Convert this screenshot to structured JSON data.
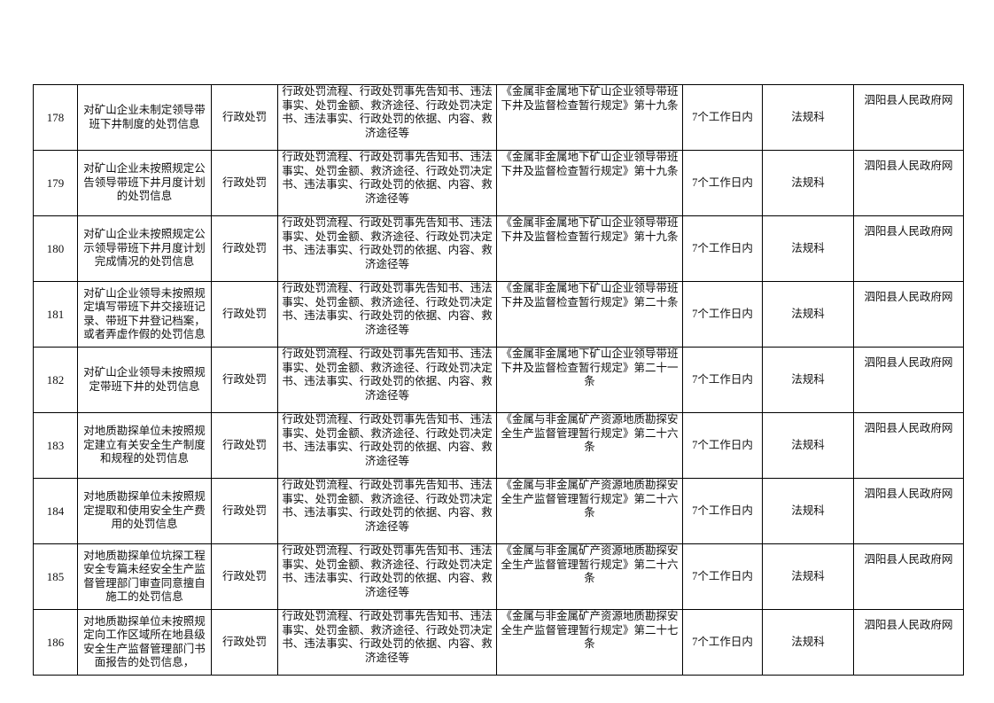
{
  "rows": [
    {
      "no": "178",
      "item": "对矿山企业未制定领导带班下井制度的处罚信息",
      "type": "行政处罚",
      "content": "行政处罚流程、行政处罚事先告知书、违法事实、处罚金额、救济途径、行政处罚决定书、违法事实、行政处罚的依据、内容、救济途径等",
      "basis": "《金属非金属地下矿山企业领导带班下井及监督检查暂行规定》第十九条",
      "time": "7个工作日内",
      "dept": "法规科",
      "channel": "泗阳县人民政府网"
    },
    {
      "no": "179",
      "item": "对矿山企业未按照规定公告领导带班下井月度计划的处罚信息",
      "type": "行政处罚",
      "content": "行政处罚流程、行政处罚事先告知书、违法事实、处罚金额、救济途径、行政处罚决定书、违法事实、行政处罚的依据、内容、救济途径等",
      "basis": "《金属非金属地下矿山企业领导带班下井及监督检查暂行规定》第十九条",
      "time": "7个工作日内",
      "dept": "法规科",
      "channel": "泗阳县人民政府网"
    },
    {
      "no": "180",
      "item": "对矿山企业未按照规定公示领导带班下井月度计划完成情况的处罚信息",
      "type": "行政处罚",
      "content": "行政处罚流程、行政处罚事先告知书、违法事实、处罚金额、救济途径、行政处罚决定书、违法事实、行政处罚的依据、内容、救济途径等",
      "basis": "《金属非金属地下矿山企业领导带班下井及监督检查暂行规定》第十九条",
      "time": "7个工作日内",
      "dept": "法规科",
      "channel": "泗阳县人民政府网"
    },
    {
      "no": "181",
      "item": "对矿山企业领导未按照规定填写带班下井交接班记录、带班下井登记档案，或者弄虚作假的处罚信息",
      "type": "行政处罚",
      "content": "行政处罚流程、行政处罚事先告知书、违法事实、处罚金额、救济途径、行政处罚决定书、违法事实、行政处罚的依据、内容、救济途径等",
      "basis": "《金属非金属地下矿山企业领导带班下井及监督检查暂行规定》第二十条",
      "time": "7个工作日内",
      "dept": "法规科",
      "channel": "泗阳县人民政府网"
    },
    {
      "no": "182",
      "item": "对矿山企业领导未按照规定带班下井的处罚信息",
      "type": "行政处罚",
      "content": "行政处罚流程、行政处罚事先告知书、违法事实、处罚金额、救济途径、行政处罚决定书、违法事实、行政处罚的依据、内容、救济途径等",
      "basis": "《金属非金属地下矿山企业领导带班下井及监督检查暂行规定》第二十一条",
      "time": "7个工作日内",
      "dept": "法规科",
      "channel": "泗阳县人民政府网"
    },
    {
      "no": "183",
      "item": "对地质勘探单位未按照规定建立有关安全生产制度和规程的处罚信息",
      "type": "行政处罚",
      "content": "行政处罚流程、行政处罚事先告知书、违法事实、处罚金额、救济途径、行政处罚决定书、违法事实、行政处罚的依据、内容、救济途径等",
      "basis": "《金属与非金属矿产资源地质勘探安全生产监督管理暂行规定》第二十六条",
      "time": "7个工作日内",
      "dept": "法规科",
      "channel": "泗阳县人民政府网"
    },
    {
      "no": "184",
      "item": "对地质勘探单位未按照规定提取和使用安全生产费用的处罚信息",
      "type": "行政处罚",
      "content": "行政处罚流程、行政处罚事先告知书、违法事实、处罚金额、救济途径、行政处罚决定书、违法事实、行政处罚的依据、内容、救济途径等",
      "basis": "《金属与非金属矿产资源地质勘探安全生产监督管理暂行规定》第二十六条",
      "time": "7个工作日内",
      "dept": "法规科",
      "channel": "泗阳县人民政府网"
    },
    {
      "no": "185",
      "item": "对地质勘探单位坑探工程安全专篇未经安全生产监督管理部门审查同意擅自施工的处罚信息",
      "type": "行政处罚",
      "content": "行政处罚流程、行政处罚事先告知书、违法事实、处罚金额、救济途径、行政处罚决定书、违法事实、行政处罚的依据、内容、救济途径等",
      "basis": "《金属与非金属矿产资源地质勘探安全生产监督管理暂行规定》第二十六条",
      "time": "7个工作日内",
      "dept": "法规科",
      "channel": "泗阳县人民政府网"
    },
    {
      "no": "186",
      "item": "对地质勘探单位未按照规定向工作区域所在地县级安全生产监督管理部门书面报告的处罚信息，",
      "type": "行政处罚",
      "content": "行政处罚流程、行政处罚事先告知书、违法事实、处罚金额、救济途径、行政处罚决定书、违法事实、行政处罚的依据、内容、救济途径等",
      "basis": "《金属与非金属矿产资源地质勘探安全生产监督管理暂行规定》第二十七条",
      "time": "7个工作日内",
      "dept": "法规科",
      "channel": "泗阳县人民政府网"
    }
  ]
}
